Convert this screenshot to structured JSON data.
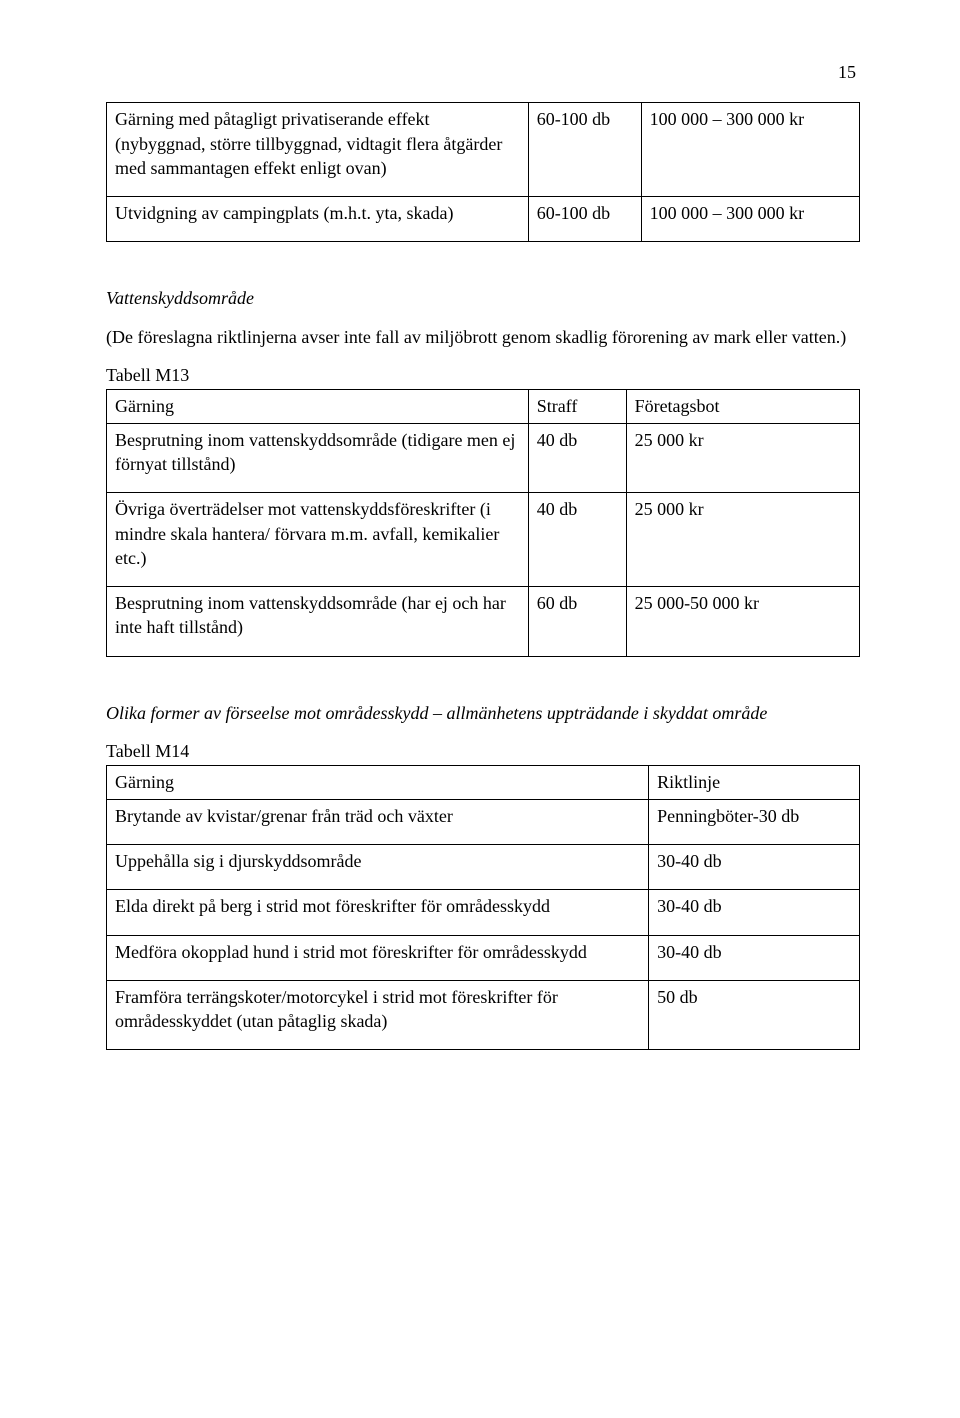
{
  "page_number": "15",
  "table1": {
    "rows": [
      {
        "label": "Gärning med påtagligt privatiserande effekt (nybyggnad, större tillbyggnad, vidtagit flera åtgärder med sammantagen effekt enligt ovan)",
        "penalty": "60-100 db",
        "fine": "100 000 – 300 000 kr"
      },
      {
        "label": "Utvidgning av campingplats (m.h.t. yta, skada)",
        "penalty": "60-100 db",
        "fine": "100 000 – 300 000 kr"
      }
    ]
  },
  "section2": {
    "title": "Vattenskyddsområde",
    "intro": "(De föreslagna riktlinjerna avser inte fall av miljöbrott genom skadlig förorening av mark eller vatten.)",
    "table_label": "Tabell M13",
    "headers": {
      "c1": "Gärning",
      "c2": "Straff",
      "c3": "Företagsbot"
    },
    "rows": [
      {
        "label": "Besprutning inom vattenskyddsområde (tidigare men ej förnyat tillstånd)",
        "penalty": "40 db",
        "fine": "25 000 kr"
      },
      {
        "label": "Övriga överträdelser mot vattenskyddsföreskrifter (i mindre skala hantera/ förvara m.m. avfall, kemikalier etc.)",
        "penalty": "40 db",
        "fine": "25 000 kr"
      },
      {
        "label": "Besprutning inom vattenskyddsområde (har ej och har inte haft tillstånd)",
        "penalty": "60 db",
        "fine": "25 000-50 000 kr"
      }
    ]
  },
  "section3": {
    "title": "Olika former av förseelse mot områdesskydd – allmänhetens uppträdande i skyddat område",
    "table_label": "Tabell M14",
    "headers": {
      "c1": "Gärning",
      "c2": "Riktlinje"
    },
    "rows": [
      {
        "label": "Brytande av kvistar/grenar från träd och växter",
        "guideline": "Penningböter-30 db"
      },
      {
        "label": "Uppehålla sig i djurskyddsområde",
        "guideline": "30-40 db"
      },
      {
        "label": "Elda direkt på berg i strid mot föreskrifter för områdesskydd",
        "guideline": "30-40 db"
      },
      {
        "label": "Medföra okopplad hund i strid mot föreskrifter för områdesskydd",
        "guideline": "30-40 db"
      },
      {
        "label": "Framföra terrängskoter/motorcykel i strid mot föreskrifter för områdesskyddet (utan påtaglig skada)",
        "guideline": "50 db"
      }
    ]
  }
}
